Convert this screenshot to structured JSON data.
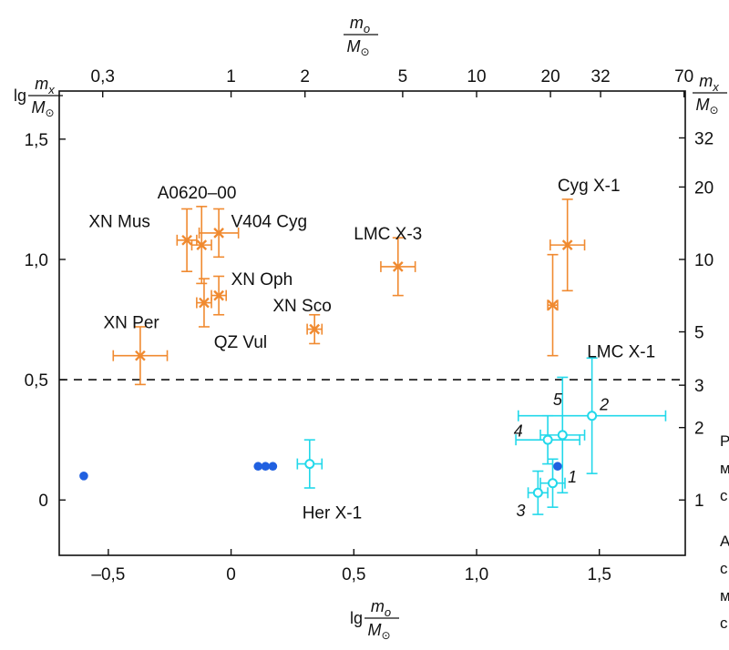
{
  "chart_data": {
    "type": "scatter",
    "colors": {
      "black_hole": "#f08a30",
      "neutron_star": "#22d8ea",
      "dot": "#2060e0"
    },
    "xlabel": {
      "prefix": "lg",
      "num": "m",
      "num_sub": "o",
      "den": "M",
      "den_sub": "⊙"
    },
    "ylabel": {
      "prefix": "lg",
      "num": "m",
      "num_sub": "x",
      "den": "M",
      "den_sub": "⊙"
    },
    "top_label": {
      "num": "m",
      "num_sub": "o",
      "den": "M",
      "den_sub": "⊙"
    },
    "right_label": {
      "num": "m",
      "num_sub": "x",
      "den": "M",
      "den_sub": "⊙"
    },
    "xlim": [
      -0.7,
      1.85
    ],
    "ylim": [
      -0.23,
      1.7
    ],
    "x_ticks": [
      {
        "v": -0.5,
        "label": "–0,5"
      },
      {
        "v": 0,
        "label": "0"
      },
      {
        "v": 0.5,
        "label": "0,5"
      },
      {
        "v": 1.0,
        "label": "1,0"
      },
      {
        "v": 1.5,
        "label": "1,5"
      }
    ],
    "y_ticks": [
      {
        "v": 0,
        "label": "0"
      },
      {
        "v": 0.5,
        "label": "0,5"
      },
      {
        "v": 1.0,
        "label": "1,0"
      },
      {
        "v": 1.5,
        "label": "1,5"
      }
    ],
    "top_ticks": [
      {
        "mass": 0.3,
        "label": "0,3"
      },
      {
        "mass": 1,
        "label": "1"
      },
      {
        "mass": 2,
        "label": "2"
      },
      {
        "mass": 5,
        "label": "5"
      },
      {
        "mass": 10,
        "label": "10"
      },
      {
        "mass": 20,
        "label": "20"
      },
      {
        "mass": 32,
        "label": "32"
      },
      {
        "mass": 70,
        "label": "70"
      }
    ],
    "right_ticks": [
      {
        "mass": 1,
        "label": "1"
      },
      {
        "mass": 2,
        "label": "2"
      },
      {
        "mass": 3,
        "label": "3"
      },
      {
        "mass": 5,
        "label": "5"
      },
      {
        "mass": 10,
        "label": "10"
      },
      {
        "mass": 20,
        "label": "20"
      },
      {
        "mass": 32,
        "label": "32"
      }
    ],
    "threshold": {
      "y": 0.5,
      "style": "dashed"
    },
    "series": [
      {
        "name": "black_hole_candidates",
        "marker": "x",
        "points": [
          {
            "id": "A0620-00",
            "x": -0.12,
            "y": 1.06,
            "xerr": 0.04,
            "yerr": 0.16,
            "label": "A0620–00",
            "label_pos": [
              -0.3,
              1.28
            ]
          },
          {
            "id": "XN Mus",
            "x": -0.18,
            "y": 1.08,
            "xerr": 0.04,
            "yerr": 0.13,
            "label": "XN Mus",
            "label_pos": [
              -0.58,
              1.16
            ]
          },
          {
            "id": "V404 Cyg",
            "x": -0.05,
            "y": 1.11,
            "xerr": 0.08,
            "yerr": 0.1,
            "label": "V404 Cyg",
            "label_pos": [
              0.0,
              1.16
            ]
          },
          {
            "id": "XN Oph",
            "x": -0.05,
            "y": 0.85,
            "xerr": 0.03,
            "yerr": 0.08,
            "label": "XN Oph",
            "label_pos": [
              0.0,
              0.92
            ]
          },
          {
            "id": "QZ Vul",
            "x": -0.11,
            "y": 0.82,
            "xerr": 0.03,
            "yerr": 0.1,
            "label": "QZ Vul",
            "label_pos": [
              -0.07,
              0.66
            ]
          },
          {
            "id": "XN Sco",
            "x": 0.34,
            "y": 0.71,
            "xerr": 0.03,
            "yerr": 0.06,
            "label": "XN Sco",
            "label_pos": [
              0.17,
              0.81
            ]
          },
          {
            "id": "XN Per",
            "x": -0.37,
            "y": 0.6,
            "xerr": 0.11,
            "yerr": 0.12,
            "label": "XN Per",
            "label_pos": [
              -0.52,
              0.74
            ]
          },
          {
            "id": "LMC X-3",
            "x": 0.68,
            "y": 0.97,
            "xerr": 0.07,
            "yerr": 0.12,
            "label": "LMC X-3",
            "label_pos": [
              0.5,
              1.11
            ]
          },
          {
            "id": "Cyg X-1",
            "x": 1.37,
            "y": 1.06,
            "xerr": 0.07,
            "yerr": 0.19,
            "label": "Cyg X-1",
            "label_pos": [
              1.33,
              1.31
            ]
          },
          {
            "id": "LMC X-1",
            "x": 1.31,
            "y": 0.81,
            "xerr": 0.02,
            "yerr": 0.21,
            "label": "LMC X-1",
            "label_pos": [
              1.45,
              0.62
            ]
          }
        ]
      },
      {
        "name": "neutron_stars",
        "marker": "open-circle",
        "points": [
          {
            "id": "Her X-1",
            "x": 0.32,
            "y": 0.15,
            "xerr": 0.05,
            "yerr": 0.1,
            "label": "Her X-1",
            "label_pos": [
              0.29,
              -0.05
            ]
          },
          {
            "id": "1",
            "x": 1.31,
            "y": 0.07,
            "xerr": 0.05,
            "yerr": 0.1,
            "label": "1",
            "label_pos": [
              1.39,
              0.1
            ]
          },
          {
            "id": "2",
            "x": 1.47,
            "y": 0.35,
            "xerr": 0.3,
            "yerr": 0.24,
            "label": "2",
            "label_pos": [
              1.52,
              0.4
            ]
          },
          {
            "id": "3",
            "x": 1.25,
            "y": 0.03,
            "xerr": 0.04,
            "yerr": 0.09,
            "label": "3",
            "label_pos": [
              1.18,
              -0.04
            ]
          },
          {
            "id": "4",
            "x": 1.29,
            "y": 0.25,
            "xerr": 0.13,
            "yerr": 0.1,
            "label": "4",
            "label_pos": [
              1.17,
              0.29
            ]
          },
          {
            "id": "5",
            "x": 1.35,
            "y": 0.27,
            "xerr": 0.09,
            "yerr": 0.24,
            "label": "5",
            "label_pos": [
              1.33,
              0.42
            ]
          }
        ]
      },
      {
        "name": "filled_dots",
        "marker": "dot",
        "points": [
          {
            "x": -0.6,
            "y": 0.1
          },
          {
            "x": 0.11,
            "y": 0.14
          },
          {
            "x": 0.14,
            "y": 0.14
          },
          {
            "x": 0.17,
            "y": 0.14
          },
          {
            "x": 1.33,
            "y": 0.14
          }
        ]
      }
    ]
  },
  "side_text": [
    "Р",
    "м",
    "с",
    "А",
    "с",
    "м",
    "с"
  ]
}
